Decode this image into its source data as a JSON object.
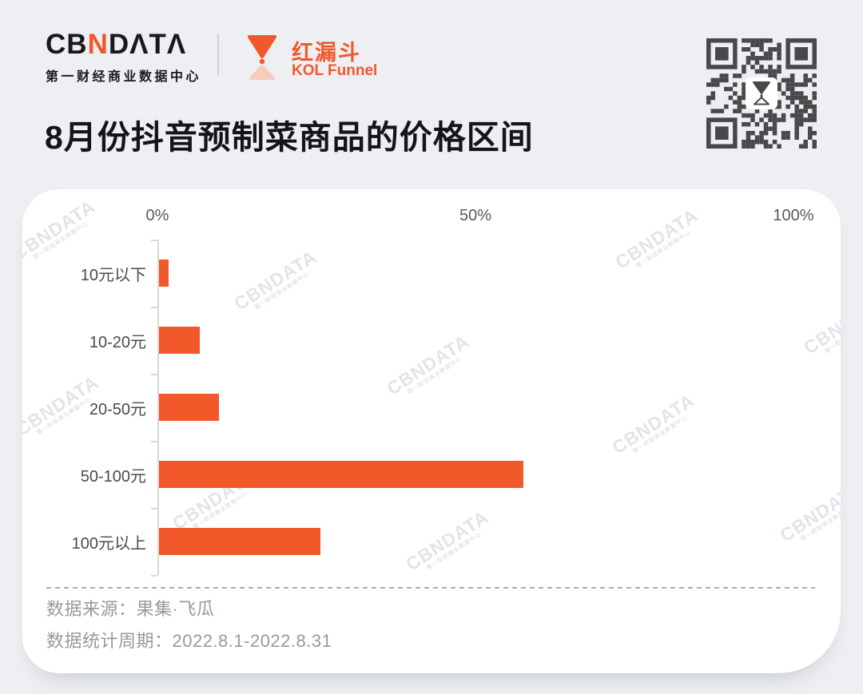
{
  "header": {
    "logo_cb": "CB",
    "logo_n": "Ν",
    "logo_data": "DΛTΛ",
    "logo_subtitle": "第一财经商业数据中心",
    "partner_name": "红漏斗",
    "partner_sub": "KOL Funnel",
    "qr_center_icon": "hourglass-icon"
  },
  "title": "8月份抖音预制菜商品的价格区间",
  "chart_data": {
    "type": "bar",
    "orientation": "horizontal",
    "title": "8月份抖音预制菜商品的价格区间",
    "categories": [
      "10元以下",
      "10-20元",
      "20-50元",
      "50-100元",
      "100元以上"
    ],
    "values": [
      1.5,
      6.4,
      9.4,
      57.3,
      25.4
    ],
    "unit": "%",
    "xlim": [
      0,
      100
    ],
    "x_ticks": [
      {
        "label": "0%",
        "value": 0
      },
      {
        "label": "50%",
        "value": 50
      },
      {
        "label": "100%",
        "value": 100
      }
    ],
    "grid": false,
    "legend": false,
    "bar_color": "#F1592B"
  },
  "watermark": {
    "text": "CBNDATA",
    "subtext": "第一财经商业数据中心"
  },
  "footer": {
    "source": "数据来源：果集·飞瓜",
    "period": "数据统计周期：2022.8.1-2022.8.31"
  },
  "colors": {
    "accent": "#F1592B",
    "accent_light": "#F8CCBA",
    "page_bg": "#EDEFF2",
    "card_bg": "#FFFFFF",
    "qr_dark": "#48484A",
    "text_dark": "#18191B",
    "text_gray": "#97999E"
  }
}
